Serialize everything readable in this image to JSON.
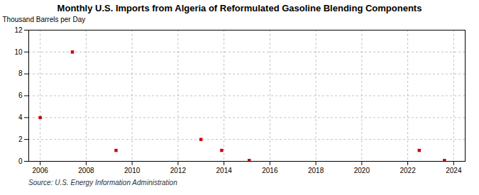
{
  "chart_data": {
    "type": "scatter",
    "title": "Monthly U.S. Imports from Algeria of Reformulated Gasoline Blending Components",
    "ylabel": "Thousand Barrels per Day",
    "source": "Source: U.S. Energy Information Administration",
    "x": [
      2006.0,
      2007.4,
      2009.3,
      2013.0,
      2013.9,
      2015.1,
      2022.5,
      2023.6
    ],
    "values": [
      4.0,
      10.0,
      1.0,
      2.0,
      1.0,
      0.08,
      1.0,
      0.08
    ],
    "color": "#cc0000",
    "marker": "square",
    "xlim": [
      2005.5,
      2024.5
    ],
    "ylim": [
      0,
      12
    ],
    "xticks": [
      2006,
      2008,
      2010,
      2012,
      2014,
      2016,
      2018,
      2020,
      2022,
      2024
    ],
    "yticks": [
      0,
      2,
      4,
      6,
      8,
      10,
      12
    ],
    "grid": true
  }
}
